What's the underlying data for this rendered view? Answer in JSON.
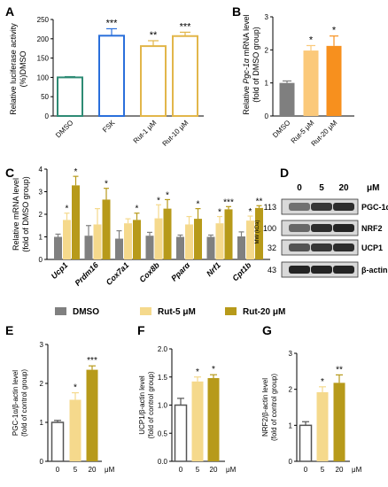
{
  "colors": {
    "dmso": "#808080",
    "rut5": "#f5d98c",
    "rut20": "#b79a1a",
    "A_dmso": "#2e8b74",
    "A_fsk": "#2a6fdb",
    "A_rut": "#e2b64a",
    "B_dmso": "#7f7f7f",
    "B_rut5": "#fbc97a",
    "B_rut20": "#f7901e",
    "blot_bg": "#d9d9d9",
    "band": "#1a1a1a"
  },
  "panels": {
    "A": {
      "letter": "A",
      "chart_data": {
        "type": "bar",
        "ylabel": [
          "Relative luciferase activity",
          "(%)DMSO"
        ],
        "ylim": [
          0,
          250
        ],
        "yticks": [
          0,
          50,
          100,
          150,
          200,
          250
        ],
        "categories": [
          "DMSO",
          "FSK",
          "Rut-1 μM",
          "Rut-10 μM"
        ],
        "values": [
          100,
          208,
          181,
          207
        ],
        "errors": [
          2,
          18,
          14,
          10
        ],
        "sig": [
          "",
          "***",
          "**",
          "***"
        ],
        "fill": "none"
      }
    },
    "B": {
      "letter": "B",
      "chart_data": {
        "type": "bar",
        "ylabel_pre": "Relative ",
        "ylabel_gene": "Pgc-1α",
        "ylabel_post": " mRNA level",
        "ylabel2": "(fold of DMSO group)",
        "ylim": [
          0,
          3
        ],
        "yticks": [
          0,
          1,
          2,
          3
        ],
        "categories": [
          "DMSO",
          "Rut-5 μM",
          "Rut-20 μM"
        ],
        "values": [
          1.0,
          1.98,
          2.12
        ],
        "errors": [
          0.06,
          0.15,
          0.3
        ],
        "sig": [
          "",
          "*",
          "*"
        ],
        "fill": "solid"
      }
    },
    "C": {
      "letter": "C",
      "chart_data": {
        "type": "bar",
        "ylabel": [
          "Relative mRNA level",
          "(fold of DMSO group)"
        ],
        "ylim": [
          0,
          4
        ],
        "yticks": [
          0,
          1,
          2,
          3,
          4
        ],
        "categories": [
          "Ucp1",
          "Prdm16",
          "Cox7a1",
          "Cox8b",
          "Pparα",
          "Nrf1",
          "Cpt1b"
        ],
        "series": [
          {
            "name": "DMSO",
            "values": [
              1.0,
              1.05,
              0.92,
              1.05,
              1.0,
              1.0,
              1.02
            ],
            "errors": [
              0.12,
              0.45,
              0.35,
              0.15,
              0.08,
              0.08,
              0.2
            ]
          },
          {
            "name": "Rut-5 μM",
            "values": [
              1.75,
              1.55,
              1.6,
              1.82,
              1.55,
              1.6,
              1.72
            ],
            "errors": [
              0.3,
              0.7,
              0.2,
              0.6,
              0.35,
              0.3,
              0.2
            ]
          },
          {
            "name": "Rut-20 μM",
            "values": [
              3.28,
              2.65,
              1.75,
              2.25,
              1.8,
              2.22,
              2.28
            ],
            "errors": [
              0.4,
              0.5,
              0.3,
              0.4,
              0.45,
              0.12,
              0.1
            ]
          }
        ],
        "sig": [
          [
            "",
            "*",
            "*"
          ],
          [
            "",
            "",
            "*"
          ],
          [
            "",
            "",
            "*"
          ],
          [
            "",
            "*",
            "*"
          ],
          [
            "",
            "",
            "*"
          ],
          [
            "",
            "*",
            "***"
          ],
          [
            "",
            "*",
            "**"
          ]
        ]
      }
    },
    "legend": [
      "DMSO",
      "Rut-5 μM",
      "Rut-20 μM"
    ],
    "D": {
      "letter": "D",
      "doses": [
        "0",
        "5",
        "20"
      ],
      "unit": "μM",
      "mw_title": "MW (kDa)",
      "rows": [
        {
          "mw": "113",
          "protein": "PGC-1α",
          "intensity": [
            0.55,
            0.85,
            0.9
          ]
        },
        {
          "mw": "100",
          "protein": "NRF2",
          "intensity": [
            0.6,
            0.9,
            0.95
          ]
        },
        {
          "mw": "32",
          "protein": "UCP1",
          "intensity": [
            0.7,
            0.85,
            0.9
          ]
        },
        {
          "mw": "43",
          "protein": "β-actin",
          "intensity": [
            0.95,
            0.95,
            0.95
          ]
        }
      ]
    },
    "E": {
      "letter": "E",
      "chart_data": {
        "type": "bar",
        "ylabel": [
          "PGC-1α/β-actin level",
          "(fold of control group)"
        ],
        "ylim": [
          0,
          3
        ],
        "yticks": [
          0,
          1,
          2,
          3
        ],
        "categories": [
          "0",
          "5",
          "20"
        ],
        "unit": "μM",
        "values": [
          1.0,
          1.58,
          2.35
        ],
        "errors": [
          0.05,
          0.18,
          0.1
        ],
        "sig": [
          "",
          "*",
          "***"
        ]
      }
    },
    "F": {
      "letter": "F",
      "chart_data": {
        "type": "bar",
        "ylabel": [
          "UCP1/β-actin level",
          "(fold of control group)"
        ],
        "ylim": [
          0,
          2.0
        ],
        "yticks": [
          0.0,
          0.5,
          1.0,
          1.5,
          2.0
        ],
        "ytick_labels": [
          "0.0",
          "0.5",
          "1.0",
          "1.5",
          "2.0"
        ],
        "categories": [
          "0",
          "5",
          "20"
        ],
        "unit": "μM",
        "values": [
          1.0,
          1.42,
          1.48
        ],
        "errors": [
          0.12,
          0.08,
          0.06
        ],
        "sig": [
          "",
          "*",
          "*"
        ]
      }
    },
    "G": {
      "letter": "G",
      "chart_data": {
        "type": "bar",
        "ylabel": [
          "NRF2/β-actin level",
          "(fold of control group)"
        ],
        "ylim": [
          0,
          3
        ],
        "yticks": [
          0,
          1,
          2,
          3
        ],
        "categories": [
          "0",
          "5",
          "20"
        ],
        "unit": "μM",
        "values": [
          1.0,
          1.92,
          2.18
        ],
        "errors": [
          0.1,
          0.15,
          0.22
        ],
        "sig": [
          "",
          "*",
          "**"
        ]
      }
    }
  }
}
